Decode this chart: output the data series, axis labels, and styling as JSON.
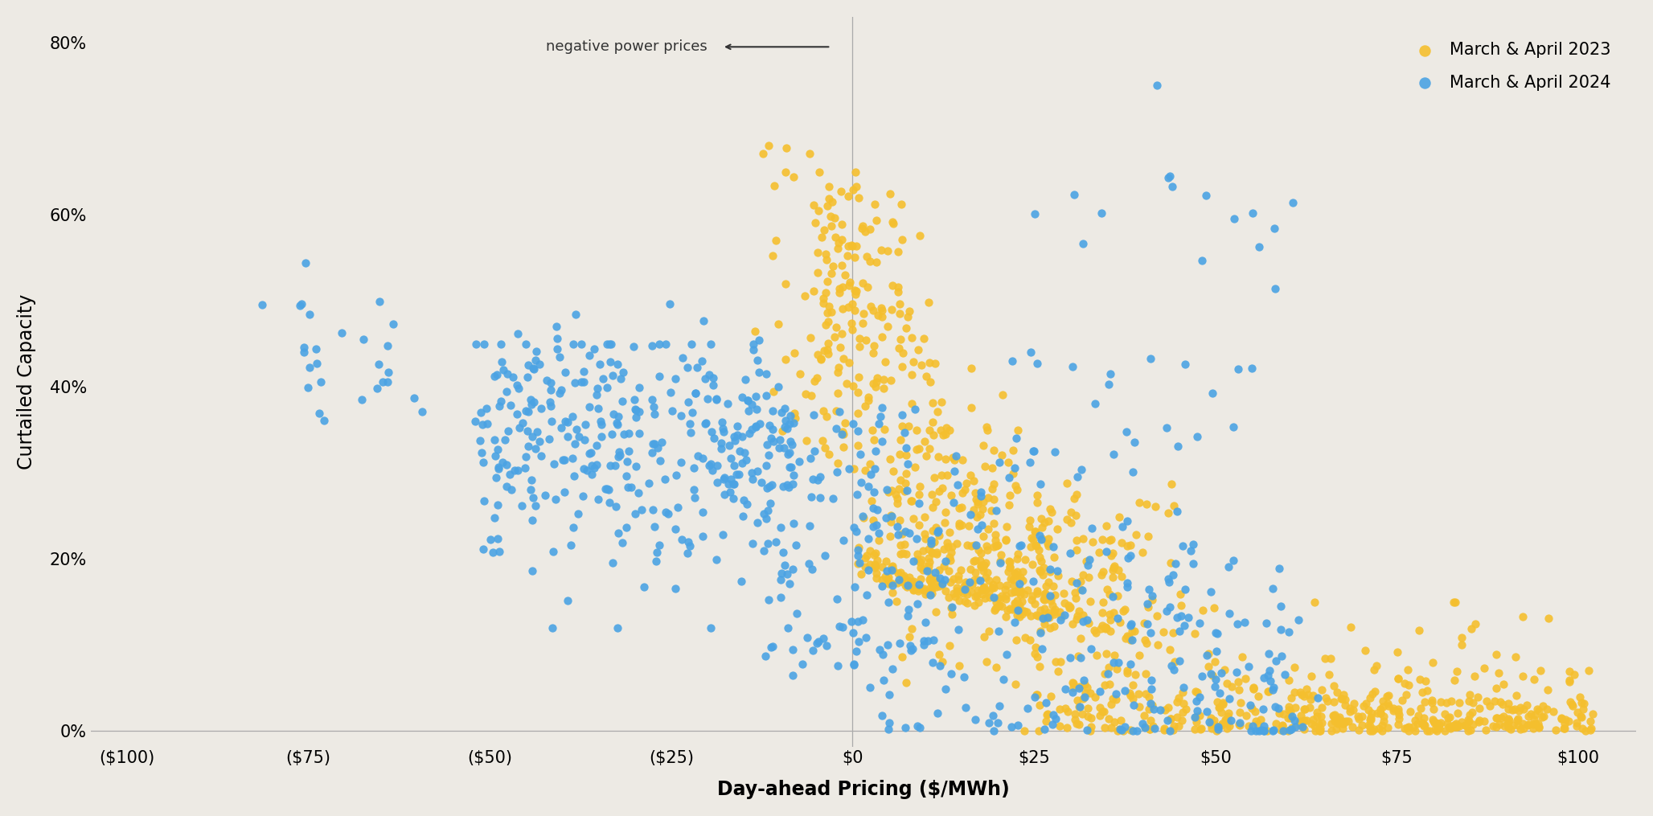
{
  "xlabel": "Day-ahead Pricing ($/MWh)",
  "ylabel": "Curtailed Capacity",
  "background_color": "#EDEAE4",
  "color_2023": "#F5BF2E",
  "color_2024": "#4BA3E3",
  "xlim": [
    -105,
    108
  ],
  "ylim": [
    -0.018,
    0.83
  ],
  "annotation_text": "←———  negative power prices",
  "legend_2023": "March & April 2023",
  "legend_2024": "March & April 2024",
  "vline_x": 0,
  "marker_size": 55,
  "alpha": 0.9,
  "xticks": [
    -100,
    -75,
    -50,
    -25,
    0,
    25,
    50,
    75,
    100
  ],
  "xtick_labels": [
    "($100)",
    "($75)",
    "($50)",
    "($25)",
    "$0",
    "$25",
    "$50",
    "$75",
    "$100"
  ],
  "yticks": [
    0,
    0.2,
    0.4,
    0.6,
    0.8
  ],
  "ytick_labels": [
    "0%",
    "20%",
    "40%",
    "60%",
    "80%"
  ],
  "tick_fontsize": 15,
  "label_fontsize": 17,
  "legend_fontsize": 15
}
